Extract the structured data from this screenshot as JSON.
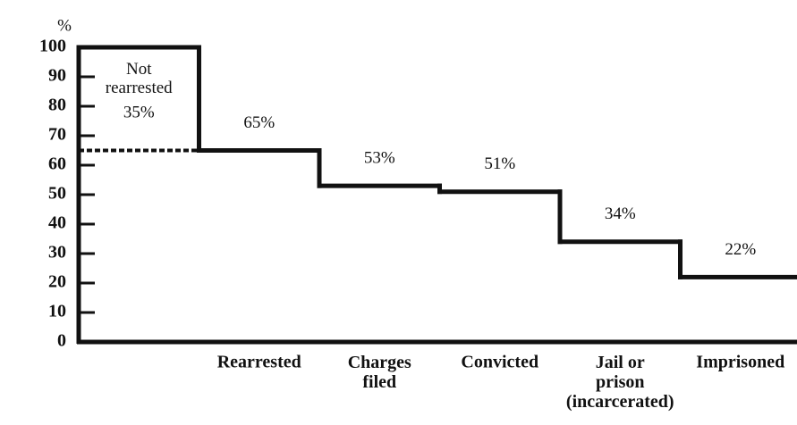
{
  "chart_data": {
    "type": "step",
    "ylabel": "%",
    "categories": [
      null,
      "Rearrested",
      "Charges\nfiled",
      "Convicted",
      "Jail or\nprison\n(incarcerated)",
      "Imprisoned"
    ],
    "values": [
      100,
      65,
      53,
      51,
      34,
      22
    ],
    "value_labels": [
      null,
      "65%",
      "53%",
      "51%",
      "34%",
      "22%"
    ],
    "annotation": {
      "text": "Not\nrearrested",
      "value": 35,
      "label": "35%"
    },
    "color": "#111111",
    "ylim": [
      0,
      100
    ],
    "yticks": [
      0,
      10,
      20,
      30,
      40,
      50,
      60,
      70,
      80,
      90,
      100
    ]
  }
}
